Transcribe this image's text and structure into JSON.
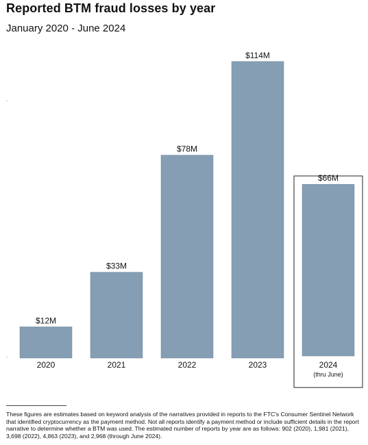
{
  "header": {
    "title": "Reported BTM fraud losses by year",
    "subtitle": "January 2020 - June 2024"
  },
  "chart_data": {
    "type": "bar",
    "title": "Reported BTM fraud losses by year",
    "subtitle": "January 2020 - June 2024",
    "xlabel": "",
    "ylabel": "",
    "categories": [
      "2020",
      "2021",
      "2022",
      "2023",
      "2024"
    ],
    "category_sublabels": [
      "",
      "",
      "",
      "",
      "(thru June)"
    ],
    "values": [
      12,
      33,
      78,
      114,
      66
    ],
    "value_labels": [
      "$12M",
      "$33M",
      "$78M",
      "$114M",
      "$66M"
    ],
    "units": "millions of dollars",
    "ylim": [
      0,
      120
    ],
    "grid": false,
    "legend": "none",
    "highlighted_category": "2024",
    "colors": {
      "bar": "#869eb3",
      "bar_edge": "#6f879c",
      "highlight_box": "#222222",
      "text": "#111111"
    }
  },
  "footnote": {
    "text": "These figures are estimates based on keyword analysis of the narratives provided in reports to the FTC's Consumer Sentinel Network that identified cryptocurrency as the payment method. Not all reports identify a payment method or include sufficient details in the report narrative to determine whether a BTM was used. The estimated number of reports by year are as follows: 902 (2020), 1,981 (2021), 3,698 (2022), 4,863 (2023), and 2,968 (through June 2024)."
  }
}
